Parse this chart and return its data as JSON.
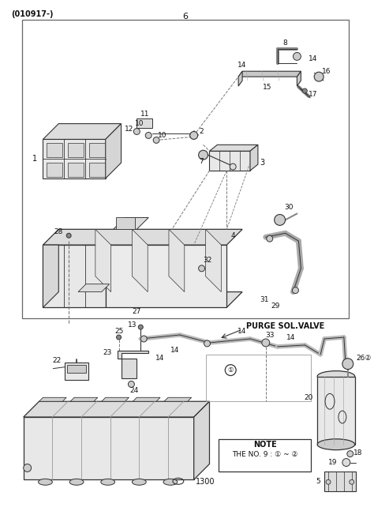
{
  "bg_color": "#f5f5f0",
  "line_color": "#333333",
  "dark_gray": "#555555",
  "mid_gray": "#888888",
  "light_gray": "#cccccc",
  "lighter_gray": "#dddddd",
  "fill_gray": "#e8e8e8",
  "fig_width": 4.74,
  "fig_height": 6.47,
  "dpi": 100,
  "title": "(010917-)",
  "purge_label": "PURGE SOL.VALVE",
  "ref_label": "1300",
  "note_line1": "NOTE",
  "note_line2": "THE NO. 9 : ① ~ ②"
}
